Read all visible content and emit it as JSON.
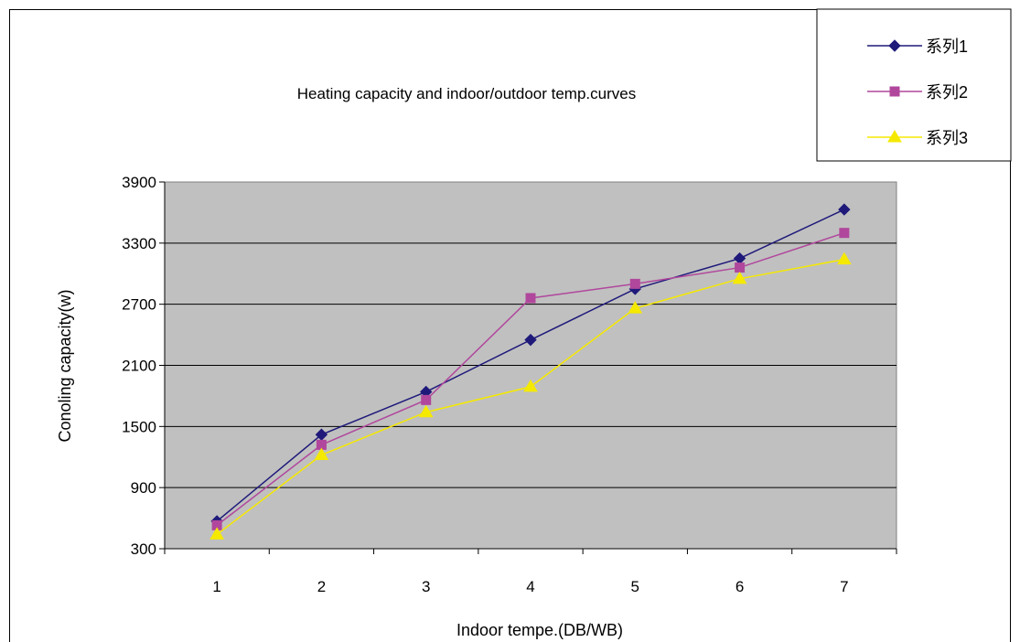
{
  "chart_data": {
    "type": "line",
    "title": "Heating capacity and indoor/outdoor temp.curves",
    "xlabel": "Indoor tempe.(DB/WB)",
    "ylabel": "Conoling capacity(w)",
    "categories": [
      "1",
      "2",
      "3",
      "4",
      "5",
      "6",
      "7"
    ],
    "ylim": [
      300,
      3900
    ],
    "yticks": [
      300,
      900,
      1500,
      2100,
      2700,
      3300,
      3900
    ],
    "grid": true,
    "legend_position": "top-right",
    "series": [
      {
        "name": "系列1",
        "marker": "diamond",
        "color": "#1F1A7A",
        "values": [
          570,
          1420,
          1840,
          2350,
          2850,
          3150,
          3630
        ]
      },
      {
        "name": "系列2",
        "marker": "square",
        "color": "#B0479C",
        "values": [
          530,
          1320,
          1760,
          2760,
          2900,
          3060,
          3400
        ]
      },
      {
        "name": "系列3",
        "marker": "triangle",
        "color": "#F5E900",
        "values": [
          440,
          1220,
          1640,
          1890,
          2660,
          2950,
          3140
        ]
      }
    ],
    "plot_background": "#C0C0C0"
  }
}
